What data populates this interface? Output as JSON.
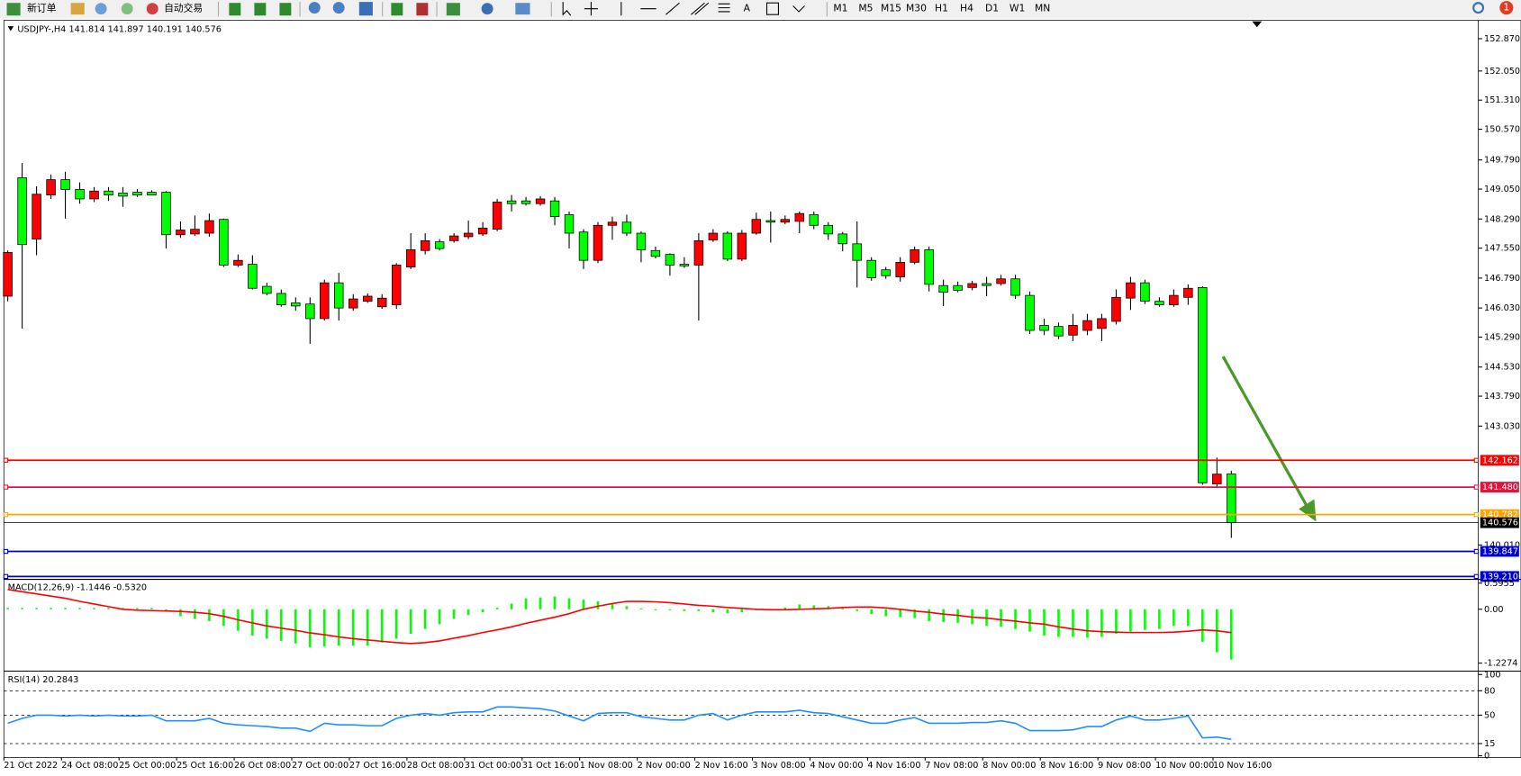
{
  "toolbar": {
    "new_order": "新订单",
    "auto_trading": "自动交易",
    "text_tool": "A",
    "timeframes": [
      "M1",
      "M5",
      "M15",
      "M30",
      "H1",
      "H4",
      "D1",
      "W1",
      "MN"
    ],
    "badge": "1"
  },
  "chart_data": [
    {
      "type": "candlestick",
      "title": "USDJPY-,H4",
      "categories": [
        "21 Oct 2022",
        null,
        null,
        null,
        "24 Oct 08:00",
        null,
        null,
        null,
        "25 Oct 00:00",
        null,
        null,
        null,
        "25 Oct 16:00",
        null,
        null,
        null,
        "26 Oct 08:00",
        null,
        null,
        null,
        "27 Oct 00:00",
        null,
        null,
        null,
        "27 Oct 16:00",
        null,
        null,
        null,
        "28 Oct 08:00",
        null,
        null,
        null,
        "31 Oct 00:00",
        null,
        null,
        null,
        "31 Oct 16:00",
        null,
        null,
        null,
        "1 Nov 08:00",
        null,
        null,
        null,
        "2 Nov 00:00",
        null,
        null,
        null,
        "2 Nov 16:00",
        null,
        null,
        null,
        "3 Nov 08:00",
        null,
        null,
        null,
        "4 Nov 00:00",
        null,
        null,
        null,
        "4 Nov 16:00",
        null,
        null,
        null,
        "7 Nov 08:00",
        null,
        null,
        null,
        "8 Nov 00:00",
        null,
        null,
        null,
        "8 Nov 16:00",
        null,
        null,
        null,
        "9 Nov 08:00",
        null,
        null,
        null,
        "10 Nov 00:00",
        null,
        null,
        null,
        "10 Nov 16:00",
        null
      ],
      "open": [
        146.33,
        149.34,
        147.78,
        148.9,
        149.29,
        149.04,
        148.8,
        149.0,
        148.95,
        148.97,
        148.97,
        148.97,
        147.89,
        147.91,
        147.93,
        148.28,
        147.12,
        147.14,
        146.58,
        146.4,
        146.16,
        146.13,
        145.76,
        146.67,
        146.03,
        146.2,
        146.06,
        146.11,
        147.07,
        147.49,
        147.71,
        147.74,
        147.84,
        147.91,
        148.03,
        148.75,
        148.75,
        148.68,
        148.75,
        148.4,
        147.96,
        147.24,
        148.13,
        148.21,
        147.93,
        147.49,
        147.39,
        147.14,
        147.12,
        147.76,
        147.93,
        147.27,
        147.93,
        148.25,
        148.21,
        148.23,
        148.4,
        148.13,
        147.91,
        147.66,
        147.24,
        147.0,
        146.82,
        147.19,
        147.51,
        146.6,
        146.6,
        146.55,
        146.65,
        146.65,
        146.77,
        146.35,
        145.59,
        145.56,
        145.34,
        145.46,
        145.51,
        145.69,
        146.28,
        146.67,
        146.2,
        146.11,
        146.3,
        146.55,
        141.56,
        141.814
      ],
      "high": [
        147.49,
        149.71,
        149.12,
        149.42,
        149.49,
        149.22,
        149.1,
        149.1,
        149.1,
        149.05,
        149.02,
        149.0,
        148.23,
        148.38,
        148.43,
        148.3,
        147.39,
        147.37,
        146.67,
        146.5,
        146.3,
        146.3,
        146.75,
        146.92,
        146.38,
        146.4,
        146.38,
        147.17,
        147.93,
        147.93,
        147.78,
        147.93,
        148.25,
        148.21,
        148.8,
        148.9,
        148.85,
        148.87,
        148.85,
        148.48,
        148.03,
        148.21,
        148.35,
        148.4,
        147.98,
        147.59,
        147.42,
        147.32,
        147.93,
        148.03,
        147.98,
        148.01,
        148.45,
        148.48,
        148.38,
        148.48,
        148.48,
        148.21,
        147.96,
        148.23,
        147.32,
        147.07,
        147.32,
        147.59,
        147.59,
        146.75,
        146.7,
        146.72,
        146.82,
        146.87,
        146.87,
        146.45,
        145.76,
        145.66,
        145.88,
        145.88,
        145.88,
        146.5,
        146.82,
        146.75,
        146.3,
        146.5,
        146.63,
        146.58,
        142.23,
        141.897
      ],
      "low": [
        146.2,
        145.51,
        147.37,
        148.8,
        148.3,
        148.68,
        148.72,
        148.75,
        148.6,
        148.85,
        148.9,
        147.54,
        147.81,
        147.86,
        147.84,
        147.07,
        147.07,
        146.5,
        146.35,
        146.06,
        145.96,
        145.12,
        145.71,
        145.71,
        145.96,
        146.16,
        146.01,
        146.01,
        147.02,
        147.39,
        147.49,
        147.69,
        147.78,
        147.86,
        147.98,
        148.48,
        148.63,
        148.63,
        148.13,
        147.54,
        147.02,
        147.17,
        147.76,
        147.86,
        147.19,
        147.29,
        146.85,
        147.05,
        145.71,
        147.71,
        147.22,
        147.22,
        147.89,
        147.69,
        148.16,
        147.93,
        148.03,
        147.76,
        147.47,
        146.55,
        146.72,
        146.77,
        146.7,
        147.14,
        146.45,
        146.08,
        146.43,
        146.48,
        146.33,
        146.6,
        146.26,
        145.37,
        145.34,
        145.24,
        145.19,
        145.34,
        145.19,
        145.61,
        145.98,
        146.13,
        146.06,
        146.06,
        146.11,
        141.54,
        141.49,
        140.191
      ],
      "close": [
        147.44,
        147.64,
        148.92,
        149.29,
        149.04,
        148.8,
        149.0,
        148.9,
        148.87,
        148.9,
        148.9,
        147.89,
        148.01,
        148.03,
        148.25,
        147.12,
        147.24,
        146.53,
        146.4,
        146.11,
        146.08,
        145.76,
        146.67,
        146.03,
        146.26,
        146.33,
        146.28,
        147.12,
        147.51,
        147.74,
        147.54,
        147.86,
        147.93,
        148.06,
        148.72,
        148.68,
        148.68,
        148.8,
        148.35,
        147.93,
        147.24,
        148.13,
        148.21,
        147.93,
        147.51,
        147.34,
        147.12,
        147.1,
        147.74,
        147.93,
        147.27,
        147.93,
        148.28,
        148.21,
        148.28,
        148.43,
        148.13,
        147.91,
        147.66,
        147.24,
        146.8,
        146.85,
        147.19,
        147.51,
        146.63,
        146.43,
        146.48,
        146.65,
        146.6,
        146.77,
        146.35,
        145.46,
        145.46,
        145.32,
        145.59,
        145.71,
        145.76,
        146.3,
        146.67,
        146.2,
        146.11,
        146.35,
        146.53,
        141.59,
        141.81,
        140.576
      ],
      "up_color": "#ff0000",
      "down_color": "#00ff00",
      "ylim": [
        139.15,
        153.31
      ],
      "yticks": [
        {
          "value": 152.87,
          "label": "152.870"
        },
        {
          "value": 152.05,
          "label": "152.050"
        },
        {
          "value": 151.31,
          "label": "151.310"
        },
        {
          "value": 150.57,
          "label": "150.570"
        },
        {
          "value": 149.79,
          "label": "149.790"
        },
        {
          "value": 149.05,
          "label": "149.050"
        },
        {
          "value": 148.29,
          "label": "148.290"
        },
        {
          "value": 147.55,
          "label": "147.550"
        },
        {
          "value": 146.79,
          "label": "146.790"
        },
        {
          "value": 146.03,
          "label": "146.030"
        },
        {
          "value": 145.29,
          "label": "145.290"
        },
        {
          "value": 144.53,
          "label": "144.530"
        },
        {
          "value": 143.79,
          "label": "143.790"
        },
        {
          "value": 143.03,
          "label": "143.030"
        },
        {
          "value": 140.01,
          "label": "140.010"
        }
      ],
      "levels": [
        {
          "value": 142.162,
          "color": "#ff0000"
        },
        {
          "value": 141.48,
          "label": "141.480",
          "color": "#e0143c"
        },
        {
          "value": 140.782,
          "color": "#ffa500"
        },
        {
          "value": 139.847,
          "color": "#0000cd"
        },
        {
          "value": 139.21,
          "label": "139.210",
          "color": "#0000cd"
        }
      ],
      "current_color": "#000000"
    },
    {
      "type": "macd",
      "title": "MACD(12,26,9) -1.1446 -0.5320",
      "histogram": [
        0.03,
        0.03,
        0.03,
        0.03,
        0.03,
        0.03,
        0.03,
        0.03,
        0.03,
        0.03,
        0.03,
        -0.04,
        -0.16,
        -0.22,
        -0.27,
        -0.38,
        -0.49,
        -0.6,
        -0.67,
        -0.72,
        -0.78,
        -0.87,
        -0.85,
        -0.83,
        -0.83,
        -0.83,
        -0.76,
        -0.67,
        -0.56,
        -0.45,
        -0.34,
        -0.22,
        -0.13,
        -0.07,
        0.04,
        0.13,
        0.25,
        0.27,
        0.29,
        0.25,
        0.22,
        0.18,
        0.13,
        0.07,
        0.02,
        -0.01,
        -0.02,
        -0.04,
        -0.04,
        -0.07,
        -0.09,
        -0.07,
        -0.02,
        0.01,
        0.04,
        0.11,
        0.09,
        0.07,
        0.02,
        -0.04,
        -0.11,
        -0.16,
        -0.18,
        -0.2,
        -0.27,
        -0.29,
        -0.31,
        -0.34,
        -0.38,
        -0.4,
        -0.45,
        -0.51,
        -0.6,
        -0.63,
        -0.63,
        -0.65,
        -0.63,
        -0.56,
        -0.51,
        -0.47,
        -0.45,
        -0.38,
        -0.38,
        -0.74,
        -0.98,
        -1.1446
      ],
      "signal": [
        0.45,
        0.4,
        0.35,
        0.3,
        0.25,
        0.18,
        0.12,
        0.06,
        0.0,
        -0.02,
        -0.03,
        -0.04,
        -0.05,
        -0.07,
        -0.1,
        -0.16,
        -0.24,
        -0.31,
        -0.38,
        -0.43,
        -0.48,
        -0.54,
        -0.58,
        -0.63,
        -0.67,
        -0.7,
        -0.73,
        -0.76,
        -0.78,
        -0.76,
        -0.72,
        -0.66,
        -0.6,
        -0.53,
        -0.47,
        -0.4,
        -0.32,
        -0.25,
        -0.18,
        -0.1,
        0.0,
        0.07,
        0.13,
        0.18,
        0.18,
        0.17,
        0.15,
        0.12,
        0.09,
        0.07,
        0.04,
        0.02,
        0.0,
        -0.01,
        -0.01,
        0.0,
        0.01,
        0.02,
        0.04,
        0.05,
        0.05,
        0.03,
        0.0,
        -0.04,
        -0.07,
        -0.11,
        -0.14,
        -0.18,
        -0.2,
        -0.24,
        -0.27,
        -0.31,
        -0.34,
        -0.4,
        -0.45,
        -0.49,
        -0.51,
        -0.52,
        -0.53,
        -0.53,
        -0.53,
        -0.52,
        -0.5,
        -0.47,
        -0.49,
        -0.532
      ],
      "histogram_color": "#00ff00",
      "signal_color": "#ff0000",
      "ylim": [
        -1.387,
        0.671
      ],
      "yticks": [
        0.5955,
        {
          "value": 0,
          "label": "0.00"
        },
        -1.2274
      ]
    },
    {
      "type": "line",
      "title": "RSI(14) 20.2843",
      "values": [
        40,
        46,
        50,
        50,
        49,
        50,
        49,
        50,
        49,
        49,
        50,
        43,
        43,
        43,
        46,
        40,
        38,
        37,
        36,
        34,
        34,
        30,
        40,
        38,
        38,
        37,
        37,
        46,
        50,
        52,
        50,
        53,
        54,
        54,
        60,
        60,
        59,
        58,
        55,
        49,
        43,
        52,
        53,
        53,
        48,
        46,
        44,
        44,
        50,
        52,
        44,
        50,
        54,
        54,
        54,
        56,
        53,
        52,
        48,
        44,
        40,
        40,
        44,
        47,
        40,
        40,
        40,
        41,
        41,
        43,
        40,
        31,
        31,
        31,
        32,
        36,
        36,
        44,
        49,
        44,
        44,
        46,
        49,
        22,
        23,
        20.2843
      ],
      "color": "#1e90ff",
      "ylim": [
        -1,
        103
      ],
      "yticks": [
        100,
        80,
        50,
        15,
        0
      ],
      "levels": [
        80,
        50,
        15
      ]
    }
  ]
}
